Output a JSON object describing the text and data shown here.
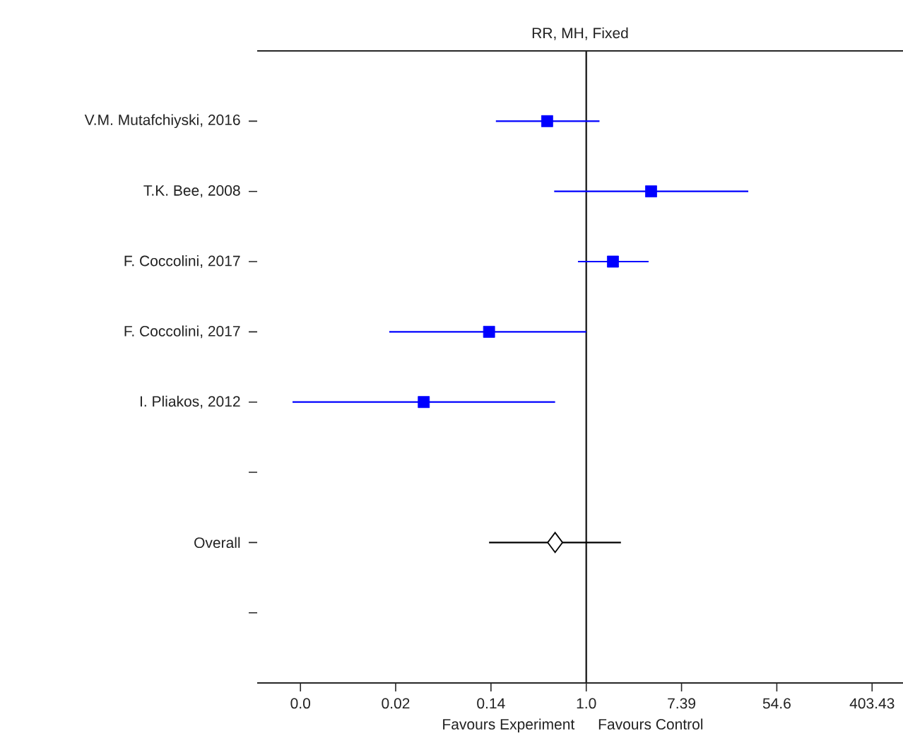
{
  "chart_data": {
    "type": "scatter",
    "orientation": "horizontal",
    "title": "RR, MH, Fixed",
    "categories": [
      "V.M. Mutafchiyski, 2016",
      "T.K. Bee, 2008",
      "F. Coccolini, 2017",
      "F. Coccolini, 2017",
      "I. Pliakos, 2012",
      null,
      "Overall",
      null
    ],
    "series": [
      {
        "color": "#0000ff",
        "marker": "square",
        "values": [
          0.44,
          3.9,
          1.75,
          0.13,
          0.033,
          null,
          null,
          null
        ],
        "errors": [
          [
            0.15,
            1.32
          ],
          [
            0.51,
            30
          ],
          [
            0.84,
            3.7
          ],
          [
            0.016,
            1.0
          ],
          [
            0.0021,
            0.52
          ],
          null,
          null,
          null
        ]
      },
      {
        "color": "#000000",
        "marker": "diamond",
        "values": [
          null,
          null,
          null,
          null,
          null,
          null,
          0.52,
          null
        ],
        "errors": [
          null,
          null,
          null,
          null,
          null,
          null,
          [
            0.13,
            2.07
          ],
          null
        ]
      }
    ],
    "log": "x",
    "xlim": [
      0.001,
      772
    ],
    "xticks": [
      {
        "value": 0.00248,
        "label": "0.0"
      },
      {
        "value": 0.0183,
        "label": "0.02"
      },
      {
        "value": 0.1353,
        "label": "0.14"
      },
      {
        "value": 1,
        "label": "1.0"
      },
      {
        "value": 7.389,
        "label": "7.39"
      },
      {
        "value": 54.6,
        "label": "54.6"
      },
      {
        "value": 403.43,
        "label": "403.43"
      }
    ],
    "ref_lines": [
      {
        "axis": "x",
        "value": 1,
        "color": "#222222"
      }
    ],
    "grid": false,
    "annotations": [
      "Favours Experiment",
      "Favours Control"
    ]
  }
}
